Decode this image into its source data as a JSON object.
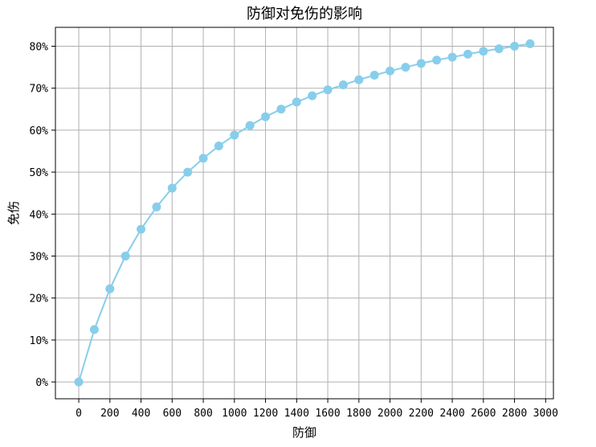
{
  "chart_data": {
    "type": "line",
    "title": "防御对免伤的影响",
    "xlabel": "防御",
    "ylabel": "免伤",
    "xlim": [
      -150,
      3050
    ],
    "ylim": [
      -0.04,
      0.845
    ],
    "grid": true,
    "x_ticks": [
      0,
      200,
      400,
      600,
      800,
      1000,
      1200,
      1400,
      1600,
      1800,
      2000,
      2200,
      2400,
      2600,
      2800,
      3000
    ],
    "x_tick_labels": [
      "0",
      "200",
      "400",
      "600",
      "800",
      "1000",
      "1200",
      "1400",
      "1600",
      "1800",
      "2000",
      "2200",
      "2400",
      "2600",
      "2800",
      "3000"
    ],
    "y_ticks": [
      0,
      0.1,
      0.2,
      0.3,
      0.4,
      0.5,
      0.6,
      0.7,
      0.8
    ],
    "y_tick_labels": [
      "0%",
      "10%",
      "20%",
      "30%",
      "40%",
      "50%",
      "60%",
      "70%",
      "80%"
    ],
    "series": [
      {
        "color": "#87CEEB",
        "marker": "circle",
        "x": [
          0,
          100,
          200,
          300,
          400,
          500,
          600,
          700,
          800,
          900,
          1000,
          1100,
          1200,
          1300,
          1400,
          1500,
          1600,
          1700,
          1800,
          1900,
          2000,
          2100,
          2200,
          2300,
          2400,
          2500,
          2600,
          2700,
          2800,
          2900
        ],
        "values": [
          0.0,
          0.125,
          0.222,
          0.3,
          0.364,
          0.417,
          0.462,
          0.5,
          0.533,
          0.5625,
          0.588,
          0.611,
          0.632,
          0.65,
          0.667,
          0.682,
          0.696,
          0.708,
          0.72,
          0.731,
          0.741,
          0.75,
          0.759,
          0.767,
          0.774,
          0.781,
          0.788,
          0.794,
          0.8,
          0.806
        ]
      }
    ]
  }
}
